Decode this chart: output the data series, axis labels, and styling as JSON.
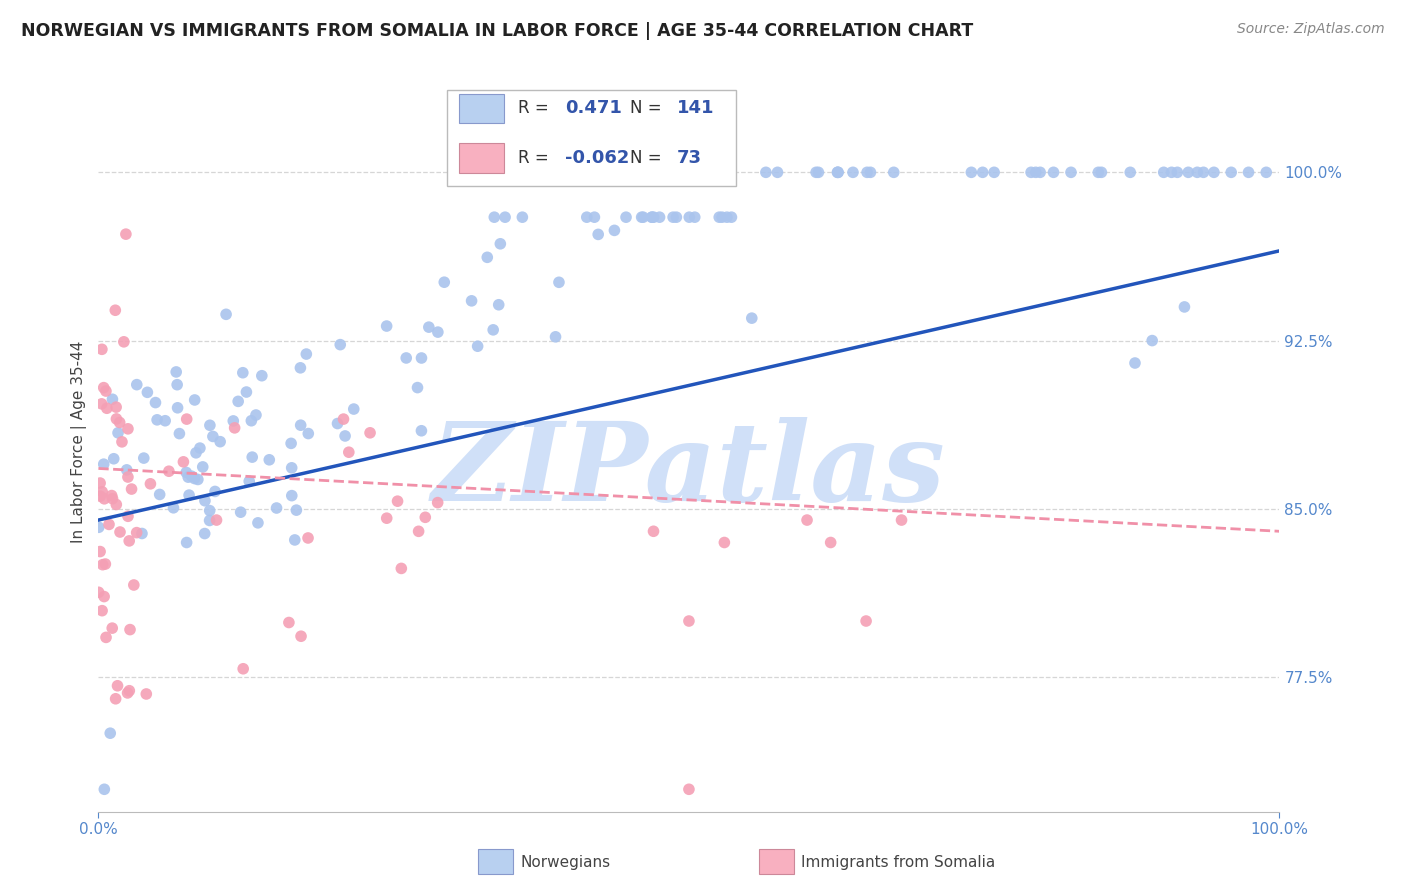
{
  "title": "NORWEGIAN VS IMMIGRANTS FROM SOMALIA IN LABOR FORCE | AGE 35-44 CORRELATION CHART",
  "source": "Source: ZipAtlas.com",
  "ylabel": "In Labor Force | Age 35-44",
  "R_norwegian": 0.471,
  "N_norwegian": 141,
  "R_somalia": -0.062,
  "N_somalia": 73,
  "norwegian_color": "#aac4ed",
  "somalia_color": "#f4a0b5",
  "norwegian_line_color": "#2255bb",
  "somalia_line_color": "#f090a8",
  "title_color": "#222222",
  "axis_label_color": "#444444",
  "tick_color": "#5588cc",
  "watermark_color": "#d0e0f8",
  "watermark_text": "ZIPatlas",
  "background_color": "#ffffff",
  "grid_color": "#cccccc",
  "legend_box_color_nor": "#b8d0f0",
  "legend_box_color_som": "#f8b0c0",
  "legend_text_color": "#3355aa",
  "xlim": [
    0.0,
    1.0
  ],
  "ylim_min": 0.715,
  "ylim_max": 1.045,
  "nor_line_x0": 0.0,
  "nor_line_x1": 1.0,
  "nor_line_y0": 0.845,
  "nor_line_y1": 0.965,
  "som_line_x0": 0.0,
  "som_line_x1": 1.0,
  "som_line_y0": 0.868,
  "som_line_y1": 0.84
}
